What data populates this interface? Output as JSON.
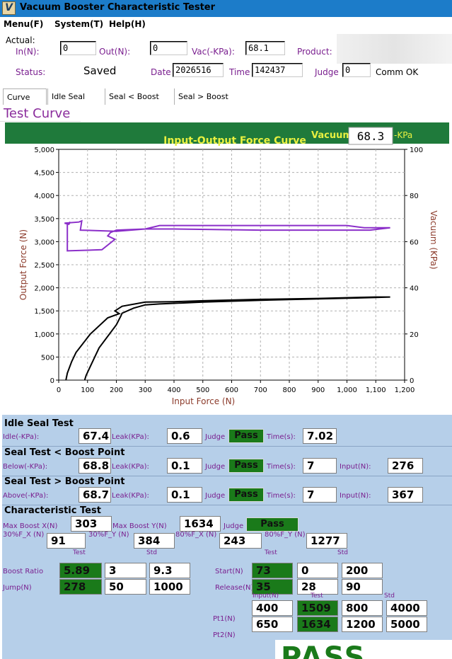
{
  "window": {
    "title": "Vacuum Booster Characteristic Tester",
    "icon": "app-logo-icon",
    "icon_glyph": "V"
  },
  "menu": {
    "file": "Menu(F)",
    "system": "System(T)",
    "help": "Help(H)"
  },
  "actual": {
    "label": "Actual:",
    "in_label": "In(N):",
    "in_value": "0",
    "out_label": "Out(N):",
    "out_value": "0",
    "vac_label": "Vac(-KPa):",
    "vac_value": "68.1",
    "product_label": "Product:",
    "status_label": "Status:",
    "status_value": "Saved",
    "date_label": "Date",
    "date_value": "2026516",
    "time_label": "Time",
    "time_value": "142437",
    "judge_label": "Judge",
    "judge_value": "0",
    "comm_status": "Comm OK"
  },
  "tabs": [
    {
      "label": "Curve",
      "active": true
    },
    {
      "label": "Idle Seal",
      "active": false
    },
    {
      "label": "Seal < Boost",
      "active": false
    },
    {
      "label": "Seal > Boost",
      "active": false
    }
  ],
  "section_title": "Test Curve",
  "chart_data": {
    "type": "line",
    "title": "Input-Output Force Curve",
    "vacuum_label": "Vacuum",
    "vacuum_value": "68.3",
    "vacuum_unit": "-KPa",
    "xlabel": "Input Force (N)",
    "ylabel": "Output Force (N)",
    "y2label": "Vacuum (KPa)",
    "xlim": [
      0,
      1200
    ],
    "ylim": [
      0,
      5000
    ],
    "y2lim": [
      0,
      100
    ],
    "grid": true,
    "x_ticks": [
      "0",
      "100",
      "200",
      "300",
      "400",
      "500",
      "600",
      "700",
      "800",
      "900",
      "1,000",
      "1,100",
      "1,200"
    ],
    "y_ticks": [
      "0",
      "500",
      "1,000",
      "1,500",
      "2,000",
      "2,500",
      "3,000",
      "3,500",
      "4,000",
      "4,500",
      "5,000"
    ],
    "y2_ticks": [
      "0",
      "20",
      "40",
      "60",
      "80",
      "100"
    ],
    "colors": {
      "panel": "#1f7a3b",
      "title": "#e8f040",
      "output_series": "#000000",
      "vacuum_series": "#8b2fc9",
      "axis_label": "#8b3a2a",
      "grid": "#b0b0b0"
    },
    "series": [
      {
        "axis": "left",
        "points": [
          [
            90,
            0
          ],
          [
            95,
            100
          ],
          [
            110,
            300
          ],
          [
            140,
            700
          ],
          [
            200,
            1200
          ],
          [
            215,
            1380
          ],
          [
            220,
            1450
          ],
          [
            260,
            1560
          ],
          [
            300,
            1630
          ],
          [
            350,
            1650
          ],
          [
            500,
            1690
          ],
          [
            700,
            1730
          ],
          [
            900,
            1760
          ],
          [
            1100,
            1790
          ],
          [
            1150,
            1800
          ],
          [
            1100,
            1800
          ],
          [
            900,
            1770
          ],
          [
            700,
            1750
          ],
          [
            500,
            1720
          ],
          [
            400,
            1700
          ],
          [
            300,
            1690
          ],
          [
            220,
            1600
          ],
          [
            195,
            1500
          ],
          [
            210,
            1440
          ],
          [
            170,
            1350
          ],
          [
            110,
            1000
          ],
          [
            60,
            600
          ],
          [
            45,
            400
          ],
          [
            30,
            150
          ],
          [
            25,
            0
          ]
        ]
      },
      {
        "axis": "right",
        "points": [
          [
            20,
            68
          ],
          [
            70,
            68.5
          ],
          [
            80,
            69
          ],
          [
            75,
            65
          ],
          [
            200,
            64.5
          ],
          [
            300,
            65.5
          ],
          [
            350,
            67
          ],
          [
            500,
            67
          ],
          [
            800,
            67
          ],
          [
            1000,
            67
          ],
          [
            1060,
            66
          ],
          [
            1150,
            66
          ],
          [
            1080,
            65
          ],
          [
            700,
            65
          ],
          [
            400,
            65.5
          ],
          [
            300,
            65.5
          ],
          [
            200,
            65
          ],
          [
            180,
            64
          ],
          [
            170,
            62.5
          ],
          [
            195,
            61
          ],
          [
            150,
            56.5
          ],
          [
            30,
            56
          ],
          [
            30,
            67.5
          ],
          [
            40,
            68.5
          ],
          [
            35,
            67.5
          ],
          [
            20,
            68
          ]
        ]
      }
    ]
  },
  "idle_seal": {
    "title": "Idle Seal Test",
    "idle_label": "Idle(-KPa):",
    "idle_value": "67.4",
    "leak_label": "Leak(KPa):",
    "leak_value": "0.6",
    "judge_label": "Judge",
    "judge_value": "Pass",
    "time_label": "Time(s):",
    "time_value": "7.02"
  },
  "seal_below": {
    "title": "Seal Test < Boost Point",
    "below_label": "Below(-KPa):",
    "below_value": "68.8",
    "leak_label": "Leak(KPa):",
    "leak_value": "0.1",
    "judge_label": "Judge",
    "judge_value": "Pass",
    "time_label": "Time(s):",
    "time_value": "7",
    "input_label": "Input(N):",
    "input_value": "276"
  },
  "seal_above": {
    "title": "Seal Test > Boost Point",
    "above_label": "Above(-KPa):",
    "above_value": "68.7",
    "leak_label": "Leak(KPa):",
    "leak_value": "0.1",
    "judge_label": "Judge",
    "judge_value": "Pass",
    "time_label": "Time(s):",
    "time_value": "7",
    "input_label": "Input(N):",
    "input_value": "367"
  },
  "characteristic": {
    "title": "Characteristic Test",
    "max_boost_x_label": "Max Boost X(N)",
    "max_boost_x_value": "303",
    "max_boost_y_label": "Max Boost Y(N)",
    "max_boost_y_value": "1634",
    "judge_label": "Judge",
    "judge_value": "Pass",
    "f30x_label": "30%F_X  (N)",
    "f30x_value": "91",
    "f30y_label": "30%F_Y  (N)",
    "f30y_value": "384",
    "f80x_label": "80%F_X  (N)",
    "f80x_value": "243",
    "f80y_label": "80%F_Y  (N)",
    "f80y_value": "1277",
    "hdr_test": "Test",
    "hdr_std": "Std",
    "hdr_input": "Input(N)",
    "boost_ratio_label": "Boost Ratio",
    "boost_ratio": [
      "5.89",
      "3",
      "9.3"
    ],
    "jump_label": "Jump(N)",
    "jump": [
      "278",
      "50",
      "1000"
    ],
    "start_label": "Start(N)",
    "start": [
      "73",
      "0",
      "200"
    ],
    "release_label": "Release(N)",
    "release": [
      "35",
      "28",
      "90"
    ],
    "pt1_label": "Pt1(N)",
    "pt1": [
      "400",
      "1509",
      "800",
      "4000"
    ],
    "pt2_label": "Pt2(N)",
    "pt2": [
      "650",
      "1634",
      "1200",
      "5000"
    ],
    "overall": "PASS"
  }
}
